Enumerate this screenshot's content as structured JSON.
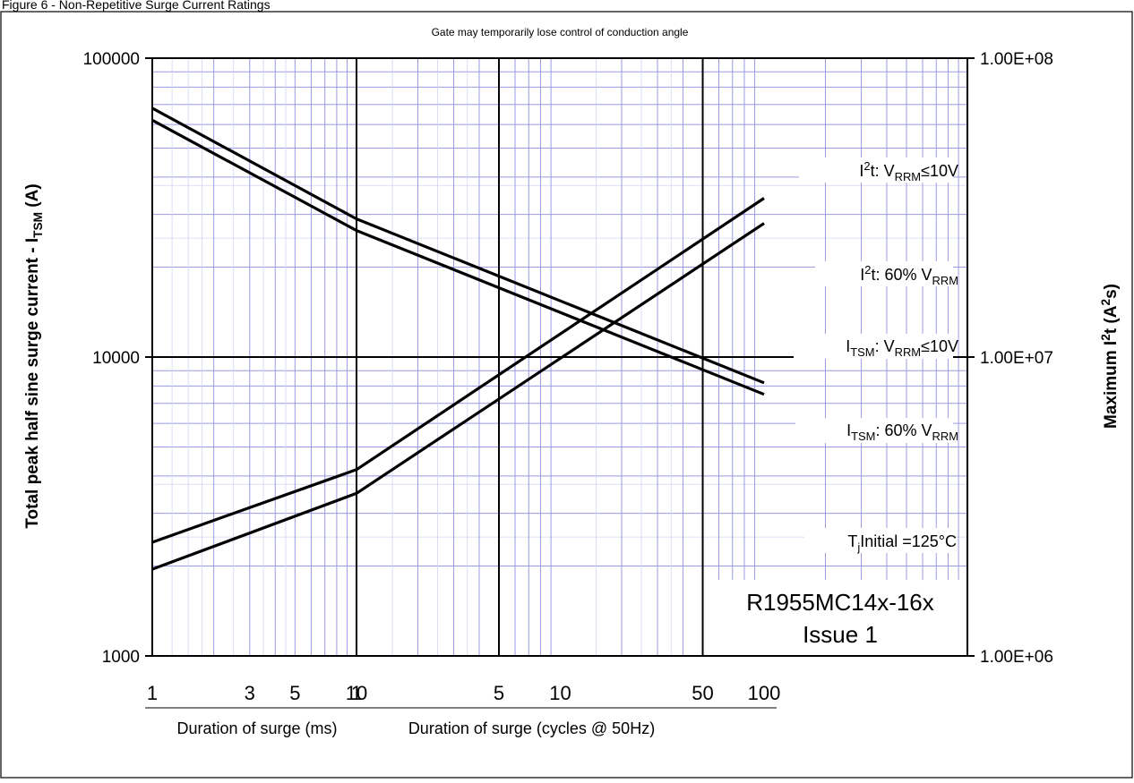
{
  "figure_caption": "Figure 6 - Non-Repetitive Surge Current Ratings",
  "chart_data": {
    "type": "line",
    "title": "Gate may temporarily lose control of conduction angle",
    "ylabel_left": {
      "main": "Total peak half sine surge current - I",
      "sub": "TSM",
      "tail": " (A)"
    },
    "ylabel_right": {
      "main": "Maximum I",
      "sup": "2",
      "tail": "t (A",
      "sup2": "2",
      "tail2": "s)"
    },
    "x_scale": "log",
    "x_segments": [
      {
        "label": "Duration of surge (ms)",
        "range": [
          1,
          10
        ],
        "tick_labels": [
          "1",
          "3",
          "5",
          "10"
        ],
        "tick_values": [
          1,
          3,
          5,
          10
        ]
      },
      {
        "label": "Duration of surge (cycles @ 50Hz)",
        "range": [
          1,
          100
        ],
        "tick_labels": [
          "1",
          "5",
          "10",
          "50",
          "100"
        ],
        "tick_values": [
          1,
          5,
          10,
          50,
          100
        ]
      }
    ],
    "y_scale": "log",
    "ylim_left": [
      1000,
      100000
    ],
    "yticks_left": [
      "1000",
      "10000",
      "100000"
    ],
    "ylim_right": [
      1000000,
      100000000
    ],
    "yticks_right": [
      "1.00E+06",
      "1.00E+07",
      "1.00E+08"
    ],
    "grid": true,
    "series": [
      {
        "name": "I2t: VRRM≤10V",
        "axis": "right",
        "labels": {
          "pre": "I",
          "sup": "2",
          "mid": "t: V",
          "sub": "RRM",
          "post": "≤10V"
        },
        "points": [
          {
            "segment": 0,
            "x": 1,
            "y": 2400000
          },
          {
            "segment": 0,
            "x": 10,
            "y": 4200000
          },
          {
            "segment": 1,
            "x": 1,
            "y": 4200000
          },
          {
            "segment": 1,
            "x": 100,
            "y": 34000000
          }
        ]
      },
      {
        "name": "I2t: 60% VRRM",
        "axis": "right",
        "labels": {
          "pre": "I",
          "sup": "2",
          "mid": "t: 60% V",
          "sub": "RRM",
          "post": ""
        },
        "points": [
          {
            "segment": 0,
            "x": 1,
            "y": 1950000
          },
          {
            "segment": 0,
            "x": 10,
            "y": 3500000
          },
          {
            "segment": 1,
            "x": 1,
            "y": 3500000
          },
          {
            "segment": 1,
            "x": 100,
            "y": 28000000
          }
        ]
      },
      {
        "name": "ITSM: VRRM≤10V",
        "axis": "left",
        "labels": {
          "pre": "I",
          "sub1": "TSM",
          "mid": ": V",
          "sub": "RRM",
          "post": "≤10V"
        },
        "points": [
          {
            "segment": 0,
            "x": 1,
            "y": 68000
          },
          {
            "segment": 0,
            "x": 10,
            "y": 29000
          },
          {
            "segment": 1,
            "x": 1,
            "y": 29000
          },
          {
            "segment": 1,
            "x": 100,
            "y": 8200
          }
        ]
      },
      {
        "name": "ITSM: 60% VRRM",
        "axis": "left",
        "labels": {
          "pre": "I",
          "sub1": "TSM",
          "mid": ": 60% V",
          "sub": "RRM",
          "post": ""
        },
        "points": [
          {
            "segment": 0,
            "x": 1,
            "y": 62000
          },
          {
            "segment": 0,
            "x": 10,
            "y": 26500
          },
          {
            "segment": 1,
            "x": 1,
            "y": 26500
          },
          {
            "segment": 1,
            "x": 100,
            "y": 7500
          }
        ]
      }
    ],
    "annotations": {
      "tj": {
        "pre": "T",
        "sub": "j",
        "post": "Initial =125°C"
      },
      "part_number": "R1955MC14x-16x",
      "issue": "Issue 1"
    }
  }
}
